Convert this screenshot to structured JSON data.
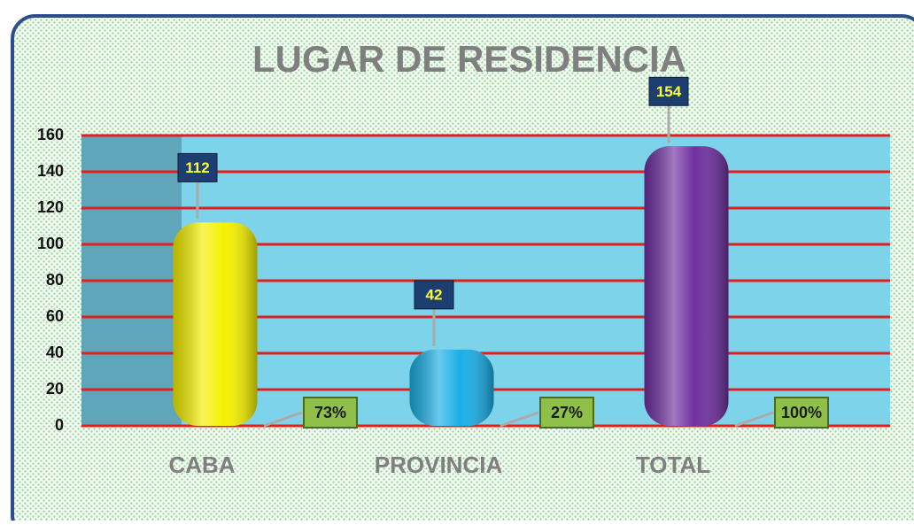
{
  "chart_data": {
    "type": "bar",
    "title": "LUGAR DE RESIDENCIA",
    "categories": [
      "CABA",
      "PROVINCIA",
      "TOTAL"
    ],
    "values": [
      112,
      42,
      154
    ],
    "percent_labels": [
      "73%",
      "27%",
      "100%"
    ],
    "colors": [
      "#f5f000",
      "#1aaee6",
      "#7030a0"
    ],
    "ylim": [
      0,
      160
    ],
    "yticks": [
      0,
      20,
      40,
      60,
      80,
      100,
      120,
      140,
      160
    ],
    "grid": true,
    "grid_color": "#e0201e",
    "plot_color": "#7dd3ea"
  }
}
